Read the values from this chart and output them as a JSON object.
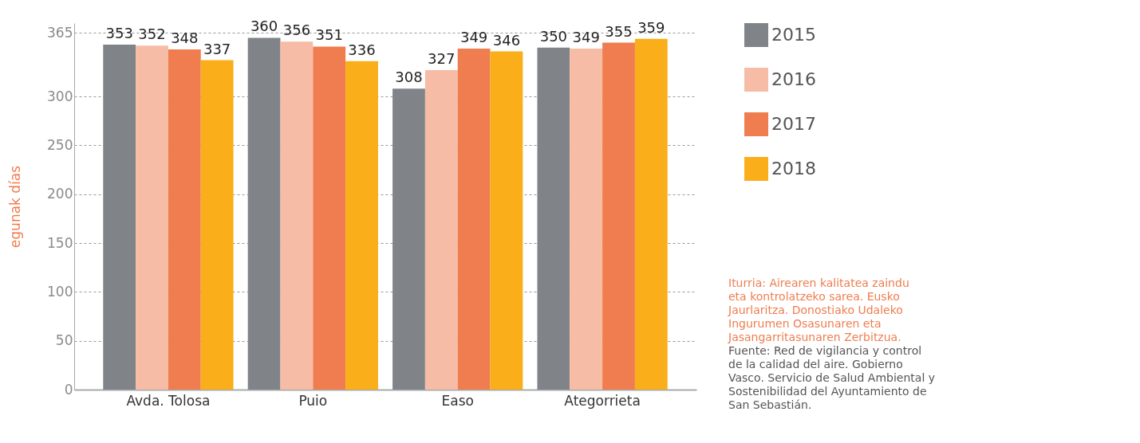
{
  "chart_data": {
    "type": "bar",
    "categories": [
      "Avda. Tolosa",
      "Puio",
      "Easo",
      "Ategorrieta"
    ],
    "series": [
      {
        "name": "2015",
        "color": "#808488",
        "values": [
          353,
          360,
          308,
          350
        ]
      },
      {
        "name": "2016",
        "color": "#f7bca5",
        "values": [
          352,
          356,
          327,
          349
        ]
      },
      {
        "name": "2017",
        "color": "#ef7d4f",
        "values": [
          348,
          351,
          349,
          355
        ]
      },
      {
        "name": "2018",
        "color": "#f9ae1a",
        "values": [
          337,
          336,
          346,
          359
        ]
      }
    ],
    "ylabel": "egunak días",
    "ylim": [
      0,
      375
    ],
    "yticks": [
      0,
      50,
      100,
      150,
      200,
      250,
      300,
      365
    ],
    "grid": "y",
    "legend": "right",
    "data_labels": true,
    "annotations": [
      "Iturria: Airearen kalitatea zaindu eta kontrolatzeko sarea. Eusko Jaurlaritza. Donostiako Udaleko Ingurumen Osasunaren eta Jasangarritasunaren Zerbitzua.",
      "Fuente: Red de vigilancia y control de la calidad del aire. Gobierno Vasco. Servicio de Salud Ambiental y Sostenibilidad del Ayuntamiento de San Sebastián."
    ]
  }
}
